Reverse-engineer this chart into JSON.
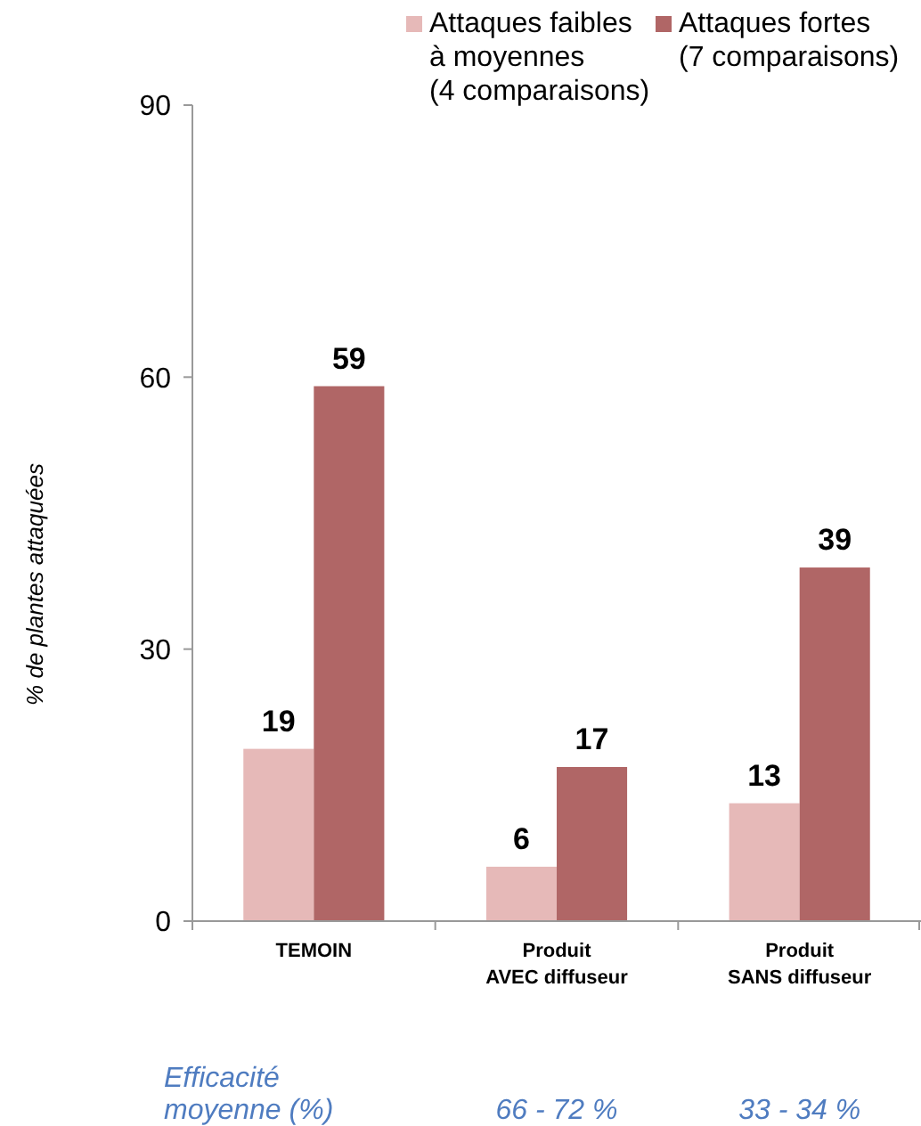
{
  "chart_data": {
    "type": "bar",
    "ylabel": "% de plantes attaquées",
    "categories": [
      "TEMOIN",
      "Produit\nAVEC diffuseur",
      "Produit\nSANS diffuseur"
    ],
    "series": [
      {
        "name": "Attaques faibles\nà moyennes\n(4 comparaisons)",
        "color": "#e6b9b8",
        "values": [
          19,
          6,
          13
        ]
      },
      {
        "name": "Attaques fortes\n(7 comparaisons)",
        "color": "#b06666",
        "values": [
          59,
          17,
          39
        ]
      }
    ],
    "ylim": [
      0,
      90
    ],
    "yticks": [
      0,
      30,
      60,
      90
    ],
    "data_labels": true,
    "legend": "top",
    "grid": false,
    "annotations": [
      "Efficacité\nmoyenne  (%)",
      "66 - 72 %",
      "33 - 34 %"
    ]
  }
}
